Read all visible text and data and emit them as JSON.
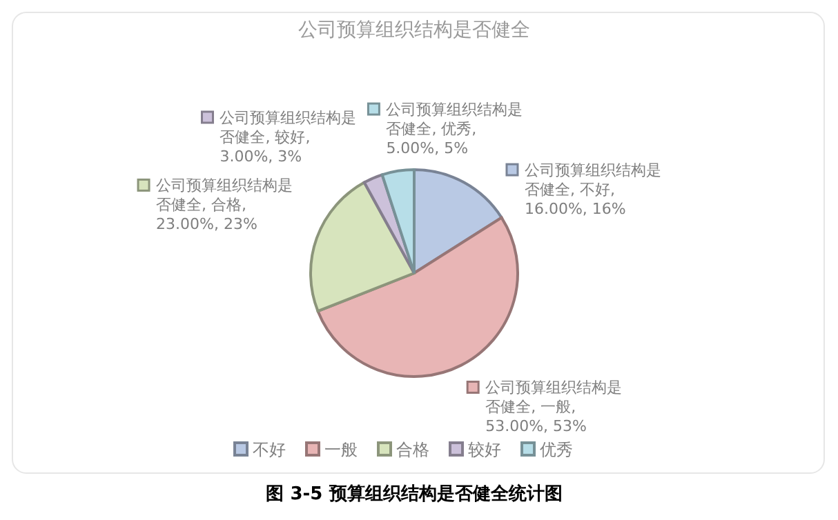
{
  "chart_data": {
    "type": "pie",
    "title": "公司预算组织结构是否健全",
    "categories": [
      "不好",
      "一般",
      "合格",
      "较好",
      "优秀"
    ],
    "values": [
      16,
      53,
      23,
      3,
      5
    ],
    "colors": [
      "#b9c9e4",
      "#e8b5b5",
      "#d7e4bd",
      "#ccc1da",
      "#b7dee8"
    ],
    "value_labels": [
      "公司预算组织结构是否健全, 不好, 16.00%, 16%",
      "公司预算组织结构是否健全, 一般, 53.00%, 53%",
      "公司预算组织结构是否健全, 合格, 23.00%, 23%",
      "公司预算组织结构是否健全, 较好, 3.00%, 3%",
      "公司预算组织结构是否健全, 优秀, 5.00%, 5%"
    ],
    "legend": "bottom",
    "annotations": [
      "图 3-5 预算组织结构是否健全统计图"
    ]
  }
}
